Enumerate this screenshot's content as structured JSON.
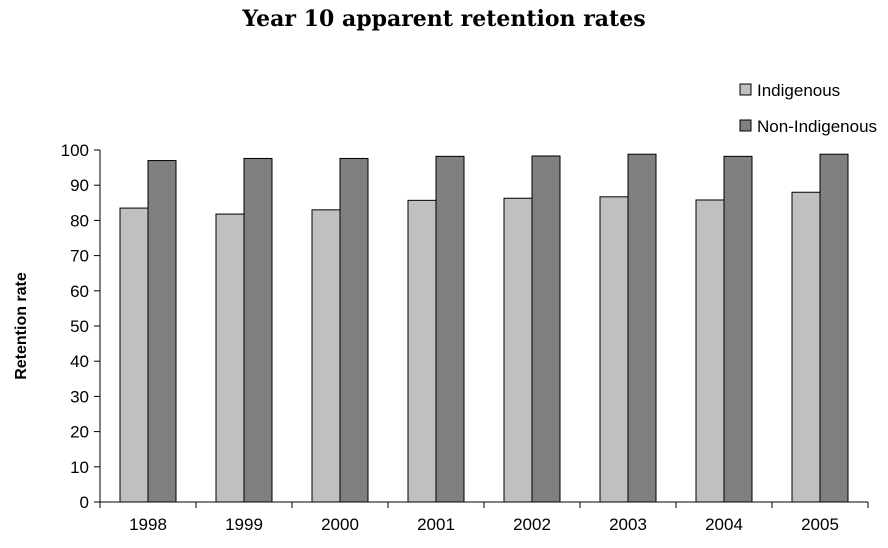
{
  "chart_data": {
    "type": "bar",
    "title": "Year 10 apparent retention rates",
    "xlabel": "",
    "ylabel": "Retention rate",
    "ylim": [
      0,
      100
    ],
    "yticks": [
      0,
      10,
      20,
      30,
      40,
      50,
      60,
      70,
      80,
      90,
      100
    ],
    "categories": [
      "1998",
      "1999",
      "2000",
      "2001",
      "2002",
      "2003",
      "2004",
      "2005"
    ],
    "series": [
      {
        "name": "Indigenous",
        "color": "#c0c0c0",
        "values": [
          83.5,
          81.8,
          83.0,
          85.7,
          86.3,
          86.7,
          85.8,
          88.0
        ]
      },
      {
        "name": "Non-Indigenous",
        "color": "#808080",
        "values": [
          97.0,
          97.6,
          97.6,
          98.2,
          98.3,
          98.8,
          98.2,
          98.8
        ]
      }
    ],
    "grid": false,
    "legend": "top-right"
  }
}
